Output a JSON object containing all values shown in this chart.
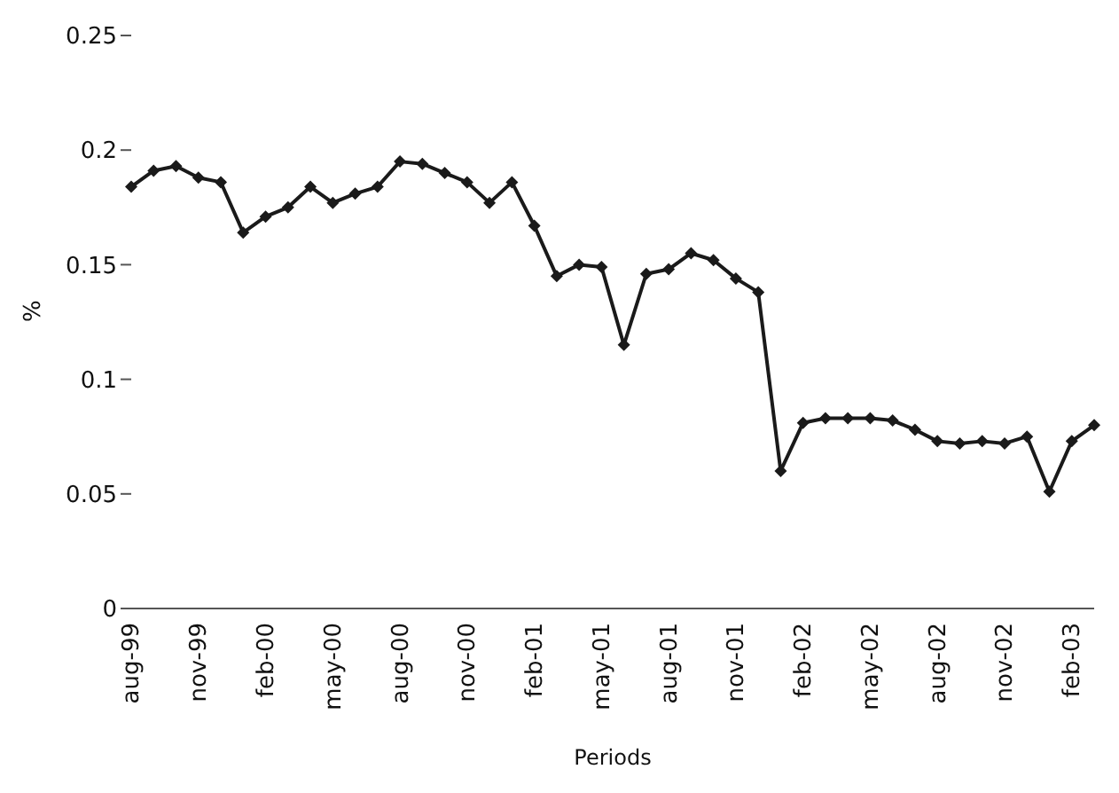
{
  "chart_data": {
    "type": "line",
    "xlabel": "Periods",
    "ylabel": "%",
    "categories": [
      "aug-99",
      null,
      null,
      "nov-99",
      null,
      null,
      "feb-00",
      null,
      null,
      "may-00",
      null,
      null,
      "aug-00",
      null,
      null,
      "nov-00",
      null,
      null,
      "feb-01",
      null,
      null,
      "may-01",
      null,
      null,
      "aug-01",
      null,
      null,
      "nov-01",
      null,
      null,
      "feb-02",
      null,
      null,
      "may-02",
      null,
      null,
      "aug-02",
      null,
      null,
      "nov-02",
      null,
      null,
      "feb-03",
      null
    ],
    "series": [
      {
        "color": "#1a1a1a",
        "values": [
          0.184,
          0.191,
          0.193,
          0.188,
          0.186,
          0.164,
          0.171,
          0.175,
          0.184,
          0.177,
          0.181,
          0.184,
          0.195,
          0.194,
          0.19,
          0.186,
          0.177,
          0.186,
          0.167,
          0.145,
          0.15,
          0.149,
          0.115,
          0.146,
          0.148,
          0.155,
          0.152,
          0.144,
          0.138,
          0.06,
          0.081,
          0.083,
          0.083,
          0.083,
          0.082,
          0.078,
          0.073,
          0.072,
          0.073,
          0.072,
          0.075,
          0.051,
          0.073,
          0.08
        ]
      }
    ],
    "ylim": [
      0,
      0.25
    ],
    "yticks": [
      0,
      0.05,
      0.1,
      0.15,
      0.2,
      0.25
    ],
    "grid": false,
    "legend": false,
    "marker": "diamond",
    "line_style": "solid"
  }
}
